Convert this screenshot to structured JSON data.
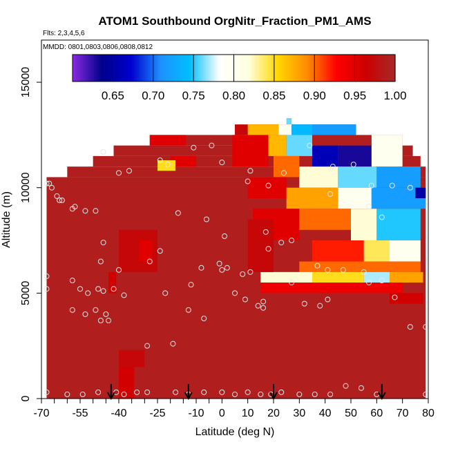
{
  "chart_data": {
    "type": "heatmap",
    "title": "ATOM1 Southbound OrgNitr_Fraction_PM1_AMS",
    "subtitle_flights": "Flts: 2,3,4,5,6",
    "subtitle_dates": "MMDD: 0801,0803,0806,0808,0812",
    "xlabel": "Latitude (deg N)",
    "ylabel": "Altitude (m)",
    "xlim": [
      -70,
      80
    ],
    "ylim": [
      0,
      17000
    ],
    "x_tick_labels": [
      "-70",
      "-55",
      "-40",
      "-25",
      "-10",
      "0",
      "10",
      "20",
      "30",
      "40",
      "50",
      "60",
      "70",
      "80"
    ],
    "x_tick_values": [
      -70,
      -55,
      -40,
      -25,
      -10,
      0,
      10,
      20,
      30,
      40,
      50,
      60,
      70,
      80
    ],
    "x_minor_ticks": [
      -65,
      -60,
      -50,
      -45,
      -35,
      -30,
      -20,
      -15,
      -5
    ],
    "y_tick_labels": [
      "0",
      "5000",
      "10000",
      "15000"
    ],
    "y_tick_values": [
      0,
      5000,
      10000,
      15000
    ],
    "colorbar": {
      "range": [
        0.6,
        1.0
      ],
      "tick_labels": [
        "0.65",
        "0.70",
        "0.75",
        "0.80",
        "0.85",
        "0.90",
        "0.95",
        "1.00"
      ],
      "tick_values": [
        0.65,
        0.7,
        0.75,
        0.8,
        0.85,
        0.9,
        0.95,
        1.0
      ],
      "colors": [
        "#8a2be2",
        "#00008b",
        "#0000cd",
        "#1e90ff",
        "#00bfff",
        "#ffffff",
        "#ffffe0",
        "#ffd700",
        "#ff8c00",
        "#ff0000",
        "#cd0000",
        "#a52a2a"
      ]
    },
    "background_value": 0.99,
    "regions": [
      {
        "x0": -68,
        "x1": 79,
        "y0": 0,
        "y1": 10500,
        "value": 0.99
      },
      {
        "x0": -60,
        "x1": 79,
        "y0": 10500,
        "y1": 11000,
        "value": 0.99
      },
      {
        "x0": -50,
        "x1": 77,
        "y0": 11000,
        "y1": 11500,
        "value": 0.99
      },
      {
        "x0": -42,
        "x1": 74,
        "y0": 11500,
        "y1": 12000,
        "value": 0.99
      },
      {
        "x0": -28,
        "x1": 70,
        "y0": 12000,
        "y1": 12500,
        "value": 0.99
      },
      {
        "x0": 5,
        "x1": 52,
        "y0": 12500,
        "y1": 13000,
        "value": 0.97
      },
      {
        "x0": 25,
        "x1": 27,
        "y0": 13000,
        "y1": 13300,
        "value": 0.76
      },
      {
        "x0": -28,
        "x1": -14,
        "y0": 12000,
        "y1": 12500,
        "value": 0.95
      },
      {
        "x0": -20,
        "x1": -10,
        "y0": 11000,
        "y1": 11500,
        "value": 0.95
      },
      {
        "x0": -25,
        "x1": -18,
        "y0": 10800,
        "y1": 11300,
        "value": 0.85
      },
      {
        "x0": 4,
        "x1": 18,
        "y0": 11000,
        "y1": 12500,
        "value": 0.95
      },
      {
        "x0": 10,
        "x1": 22,
        "y0": 12500,
        "y1": 13000,
        "value": 0.87
      },
      {
        "x0": 22,
        "x1": 27,
        "y0": 12500,
        "y1": 13000,
        "value": 0.8
      },
      {
        "x0": 27,
        "x1": 35,
        "y0": 12500,
        "y1": 13000,
        "value": 0.74
      },
      {
        "x0": 35,
        "x1": 52,
        "y0": 12500,
        "y1": 13000,
        "value": 0.72
      },
      {
        "x0": 18,
        "x1": 25,
        "y0": 11500,
        "y1": 12500,
        "value": 0.87
      },
      {
        "x0": 25,
        "x1": 35,
        "y0": 11500,
        "y1": 12500,
        "value": 0.76
      },
      {
        "x0": 35,
        "x1": 45,
        "y0": 11000,
        "y1": 12000,
        "value": 0.66
      },
      {
        "x0": 45,
        "x1": 58,
        "y0": 11000,
        "y1": 12000,
        "value": 0.63
      },
      {
        "x0": 58,
        "x1": 70,
        "y0": 11000,
        "y1": 12500,
        "value": 0.8
      },
      {
        "x0": 20,
        "x1": 30,
        "y0": 10500,
        "y1": 11500,
        "value": 0.9
      },
      {
        "x0": 30,
        "x1": 45,
        "y0": 10000,
        "y1": 11000,
        "value": 0.82
      },
      {
        "x0": 45,
        "x1": 60,
        "y0": 10000,
        "y1": 11000,
        "value": 0.76
      },
      {
        "x0": 60,
        "x1": 77,
        "y0": 10000,
        "y1": 11000,
        "value": 0.72
      },
      {
        "x0": 10,
        "x1": 25,
        "y0": 9500,
        "y1": 10500,
        "value": 0.95
      },
      {
        "x0": 25,
        "x1": 45,
        "y0": 9000,
        "y1": 10000,
        "value": 0.88
      },
      {
        "x0": 45,
        "x1": 58,
        "y0": 9000,
        "y1": 10000,
        "value": 0.8
      },
      {
        "x0": 58,
        "x1": 79,
        "y0": 9000,
        "y1": 10000,
        "value": 0.72
      },
      {
        "x0": 75,
        "x1": 79,
        "y0": 9500,
        "y1": 10000,
        "value": 0.65
      },
      {
        "x0": 12,
        "x1": 30,
        "y0": 7500,
        "y1": 9000,
        "value": 0.95
      },
      {
        "x0": 30,
        "x1": 50,
        "y0": 8000,
        "y1": 9000,
        "value": 0.9
      },
      {
        "x0": 50,
        "x1": 60,
        "y0": 7500,
        "y1": 9000,
        "value": 0.82
      },
      {
        "x0": 60,
        "x1": 77,
        "y0": 7500,
        "y1": 9000,
        "value": 0.75
      },
      {
        "x0": 35,
        "x1": 55,
        "y0": 6500,
        "y1": 7500,
        "value": 0.92
      },
      {
        "x0": 55,
        "x1": 65,
        "y0": 6500,
        "y1": 7500,
        "value": 0.84
      },
      {
        "x0": 65,
        "x1": 77,
        "y0": 6500,
        "y1": 7500,
        "value": 0.8
      },
      {
        "x0": 30,
        "x1": 77,
        "y0": 6000,
        "y1": 6500,
        "value": 0.9
      },
      {
        "x0": 15,
        "x1": 35,
        "y0": 5500,
        "y1": 6000,
        "value": 0.82
      },
      {
        "x0": 35,
        "x1": 55,
        "y0": 5500,
        "y1": 6000,
        "value": 0.85
      },
      {
        "x0": 55,
        "x1": 65,
        "y0": 5500,
        "y1": 6000,
        "value": 0.77
      },
      {
        "x0": 65,
        "x1": 78,
        "y0": 5500,
        "y1": 6000,
        "value": 0.88
      },
      {
        "x0": 15,
        "x1": 70,
        "y0": 5000,
        "y1": 5500,
        "value": 0.94
      },
      {
        "x0": 65,
        "x1": 78,
        "y0": 4500,
        "y1": 5000,
        "value": 0.96
      },
      {
        "x0": 10,
        "x1": 20,
        "y0": 6000,
        "y1": 8500,
        "value": 0.97
      },
      {
        "x0": -40,
        "x1": -25,
        "y0": 6000,
        "y1": 8000,
        "value": 0.97
      },
      {
        "x0": -32,
        "x1": -27,
        "y0": 6500,
        "y1": 7500,
        "value": 0.95
      },
      {
        "x0": -44,
        "x1": -41,
        "y0": 5000,
        "y1": 6000,
        "value": 0.96
      },
      {
        "x0": -40,
        "x1": -30,
        "y0": 1500,
        "y1": 2300,
        "value": 0.97
      },
      {
        "x0": -40,
        "x1": -34,
        "y0": 0,
        "y1": 1500,
        "value": 0.96
      }
    ],
    "observations": [
      [
        -67,
        10200
      ],
      [
        -68,
        10200
      ],
      [
        -66,
        10000
      ],
      [
        -64,
        9600
      ],
      [
        -63,
        9400
      ],
      [
        -62,
        9400
      ],
      [
        -58,
        9000
      ],
      [
        -57,
        9100
      ],
      [
        -53,
        8900
      ],
      [
        -49,
        8900
      ],
      [
        -46,
        11700
      ],
      [
        -40,
        10700
      ],
      [
        -36,
        10800
      ],
      [
        -24,
        11300
      ],
      [
        -21,
        11100
      ],
      [
        -11,
        11900
      ],
      [
        -4,
        12000
      ],
      [
        0,
        11200
      ],
      [
        -17,
        8800
      ],
      [
        -6,
        8500
      ],
      [
        -68,
        5800
      ],
      [
        -68,
        5200
      ],
      [
        -58,
        5600
      ],
      [
        -55,
        5200
      ],
      [
        -52,
        5000
      ],
      [
        -48,
        5200
      ],
      [
        -46,
        5100
      ],
      [
        -42,
        5200
      ],
      [
        -40,
        6100
      ],
      [
        -38,
        4900
      ],
      [
        -58,
        4200
      ],
      [
        -53,
        4000
      ],
      [
        -49,
        4200
      ],
      [
        -47,
        3700
      ],
      [
        -47,
        6500
      ],
      [
        -46,
        7400
      ],
      [
        -28,
        6500
      ],
      [
        -24,
        7000
      ],
      [
        -22,
        5000
      ],
      [
        -13,
        4200
      ],
      [
        -12,
        5400
      ],
      [
        -8,
        6200
      ],
      [
        -7,
        3800
      ],
      [
        -1,
        6400
      ],
      [
        0,
        6100
      ],
      [
        1,
        7700
      ],
      [
        2,
        6200
      ],
      [
        5,
        5000
      ],
      [
        8,
        5900
      ],
      [
        9,
        4700
      ],
      [
        11,
        6000
      ],
      [
        14,
        4400
      ],
      [
        16,
        4300
      ],
      [
        16,
        4600
      ],
      [
        17,
        7900
      ],
      [
        18,
        7100
      ],
      [
        23,
        7400
      ],
      [
        27,
        7500
      ],
      [
        27,
        5500
      ],
      [
        32,
        4500
      ],
      [
        38,
        4400
      ],
      [
        41,
        4700
      ],
      [
        37,
        6300
      ],
      [
        41,
        6100
      ],
      [
        47,
        6100
      ],
      [
        55,
        6000
      ],
      [
        57,
        5500
      ],
      [
        62,
        5600
      ],
      [
        67,
        4800
      ],
      [
        73,
        3400
      ],
      [
        79,
        3400
      ],
      [
        10,
        10300
      ],
      [
        11,
        10800
      ],
      [
        18,
        10100
      ],
      [
        24,
        10700
      ],
      [
        34,
        12000
      ],
      [
        43,
        11000
      ],
      [
        51,
        11100
      ],
      [
        58,
        10100
      ],
      [
        66,
        10100
      ],
      [
        73,
        10000
      ],
      [
        42,
        9700
      ],
      [
        57,
        9100
      ],
      [
        62,
        8600
      ],
      [
        -68,
        300
      ],
      [
        -60,
        200
      ],
      [
        -54,
        200
      ],
      [
        -48,
        300
      ],
      [
        -41,
        300
      ],
      [
        -38,
        200
      ],
      [
        -33,
        300
      ],
      [
        -29,
        300
      ],
      [
        -18,
        300
      ],
      [
        -13,
        200
      ],
      [
        -7,
        300
      ],
      [
        0,
        300
      ],
      [
        5,
        200
      ],
      [
        10,
        300
      ],
      [
        15,
        200
      ],
      [
        19,
        200
      ],
      [
        23,
        300
      ],
      [
        30,
        200
      ],
      [
        36,
        200
      ],
      [
        42,
        200
      ],
      [
        48,
        600
      ],
      [
        54,
        500
      ],
      [
        60,
        200
      ],
      [
        79,
        200
      ],
      [
        -44,
        3700
      ],
      [
        -29,
        2500
      ],
      [
        -19,
        2600
      ],
      [
        -45,
        4000
      ]
    ],
    "flight_markers_lat": [
      -43,
      -13,
      20,
      62
    ]
  }
}
